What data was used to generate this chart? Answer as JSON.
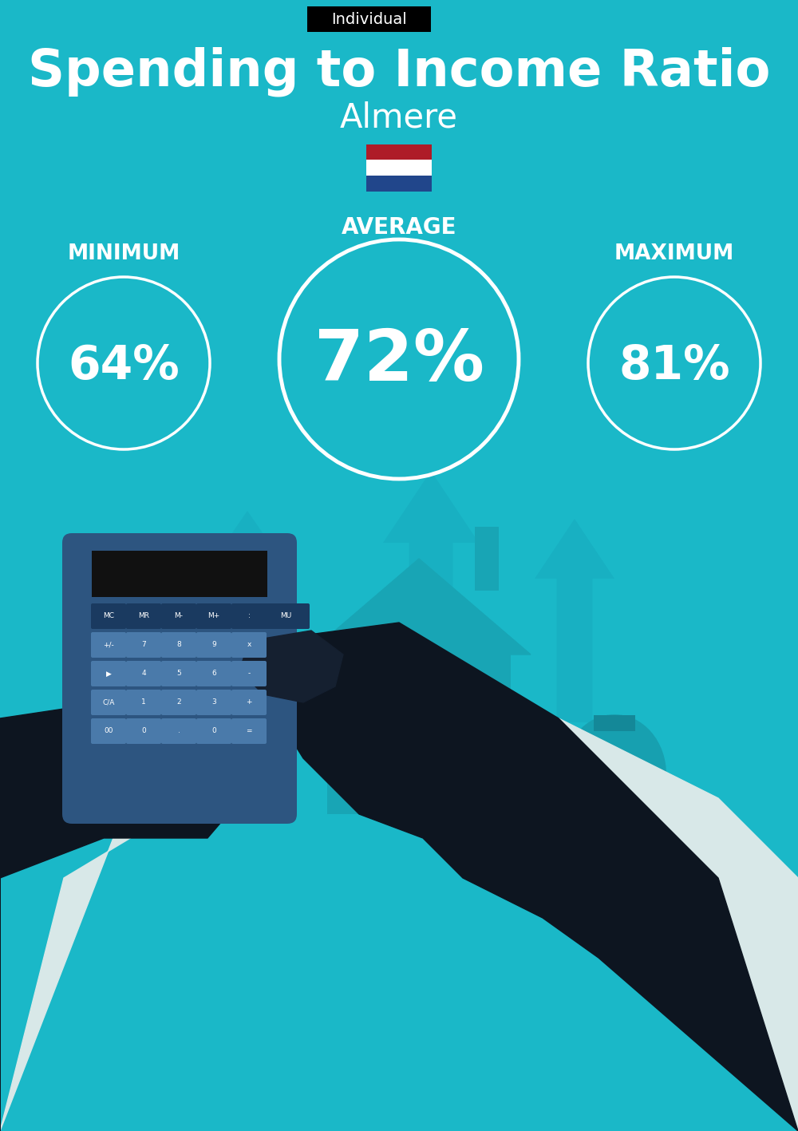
{
  "title": "Spending to Income Ratio",
  "city": "Almere",
  "tag": "Individual",
  "bg_color": "#1ab8c8",
  "min_value": "64%",
  "avg_value": "72%",
  "max_value": "81%",
  "min_label": "MINIMUM",
  "avg_label": "AVERAGE",
  "max_label": "MAXIMUM",
  "white": "#ffffff",
  "black": "#000000",
  "tag_bg": "#000000",
  "tag_color": "#ffffff",
  "flag_red": "#AE1C28",
  "flag_white": "#ffffff",
  "flag_blue": "#21468B",
  "dark_figure": "#0d1520",
  "dark_figure2": "#152030",
  "calc_body": "#2d5580",
  "calc_screen": "#111111",
  "calc_btn_light": "#4a7aaa",
  "calc_btn_dark": "#1a3a60",
  "teal_arrow": "#17aabe",
  "house_color": "#18a5b5",
  "money_bag": "#1a9aaa",
  "money_gold": "#d4b800",
  "title_fontsize": 46,
  "city_fontsize": 30,
  "label_fontsize": 19,
  "min_fontsize": 42,
  "avg_fontsize": 64,
  "max_fontsize": 42,
  "tag_fontsize": 14
}
